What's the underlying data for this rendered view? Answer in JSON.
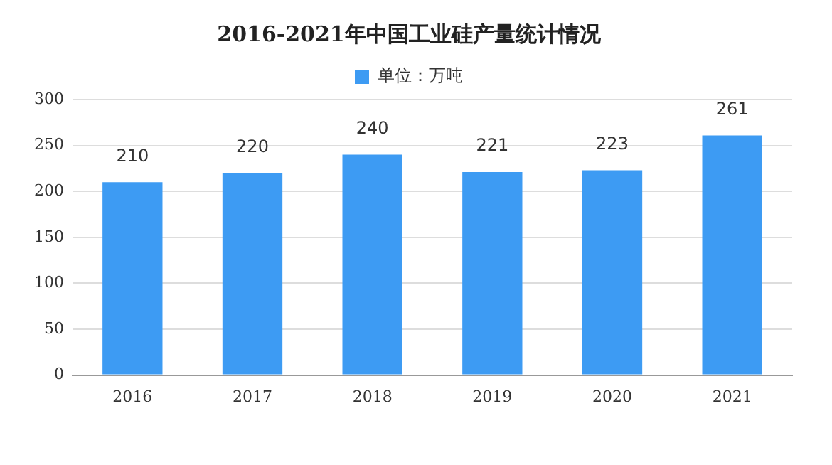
{
  "chart_data": {
    "type": "bar",
    "title": "2016-2021年中国工业硅产量统计情况",
    "categories": [
      "2016",
      "2017",
      "2018",
      "2019",
      "2020",
      "2021"
    ],
    "series": [
      {
        "name": "单位：万吨",
        "color": "#3d9bf3",
        "values": [
          210,
          220,
          240,
          221,
          223,
          261
        ]
      }
    ],
    "ylim": [
      0,
      300
    ],
    "yticks": [
      0,
      50,
      100,
      150,
      200,
      250,
      300
    ],
    "grid": "y",
    "legend": "top",
    "data_labels": true
  }
}
